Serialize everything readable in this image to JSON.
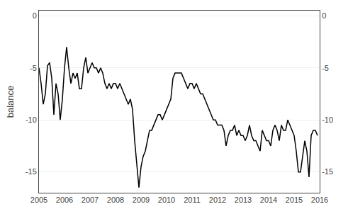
{
  "chart_data": {
    "type": "line",
    "ylabel": "balance",
    "color": "#000000",
    "grid": "y",
    "xlim": [
      2005.0,
      2016.0
    ],
    "ylim": [
      -17.0,
      0.5
    ],
    "xticks": [
      2005,
      2006,
      2007,
      2008,
      2009,
      2010,
      2011,
      2012,
      2013,
      2014,
      2015,
      2016
    ],
    "yticks": [
      0,
      -5,
      -10,
      -15
    ],
    "y2lim": [
      -17.0,
      0.5
    ],
    "y2ticks": [
      0,
      -5,
      -10,
      -15
    ],
    "x": [
      2005.0,
      2005.083,
      2005.167,
      2005.25,
      2005.333,
      2005.417,
      2005.5,
      2005.583,
      2005.667,
      2005.75,
      2005.833,
      2005.917,
      2006.0,
      2006.083,
      2006.167,
      2006.25,
      2006.333,
      2006.417,
      2006.5,
      2006.583,
      2006.667,
      2006.75,
      2006.833,
      2006.917,
      2007.0,
      2007.083,
      2007.167,
      2007.25,
      2007.333,
      2007.417,
      2007.5,
      2007.583,
      2007.667,
      2007.75,
      2007.833,
      2007.917,
      2008.0,
      2008.083,
      2008.167,
      2008.25,
      2008.333,
      2008.417,
      2008.5,
      2008.583,
      2008.667,
      2008.75,
      2008.833,
      2008.917,
      2009.0,
      2009.083,
      2009.167,
      2009.25,
      2009.333,
      2009.417,
      2009.5,
      2009.583,
      2009.667,
      2009.75,
      2009.833,
      2009.917,
      2010.0,
      2010.083,
      2010.167,
      2010.25,
      2010.333,
      2010.417,
      2010.5,
      2010.583,
      2010.667,
      2010.75,
      2010.833,
      2010.917,
      2011.0,
      2011.083,
      2011.167,
      2011.25,
      2011.333,
      2011.417,
      2011.5,
      2011.583,
      2011.667,
      2011.75,
      2011.833,
      2011.917,
      2012.0,
      2012.083,
      2012.167,
      2012.25,
      2012.333,
      2012.417,
      2012.5,
      2012.583,
      2012.667,
      2012.75,
      2012.833,
      2012.917,
      2013.0,
      2013.083,
      2013.167,
      2013.25,
      2013.333,
      2013.417,
      2013.5,
      2013.583,
      2013.667,
      2013.75,
      2013.833,
      2013.917,
      2014.0,
      2014.083,
      2014.167,
      2014.25,
      2014.333,
      2014.417,
      2014.5,
      2014.583,
      2014.667,
      2014.75,
      2014.833,
      2014.917,
      2015.0,
      2015.083,
      2015.167,
      2015.25,
      2015.333,
      2015.417,
      2015.5,
      2015.583,
      2015.667,
      2015.75,
      2015.833,
      2015.917
    ],
    "values": [
      -5.0,
      -6.5,
      -8.5,
      -7.5,
      -4.8,
      -4.5,
      -6.0,
      -9.5,
      -6.5,
      -7.5,
      -10.0,
      -8.0,
      -5.0,
      -3.0,
      -5.0,
      -6.5,
      -5.5,
      -6.0,
      -5.5,
      -7.0,
      -7.0,
      -5.0,
      -4.0,
      -5.5,
      -5.0,
      -4.5,
      -5.0,
      -5.0,
      -5.5,
      -5.0,
      -5.5,
      -6.5,
      -7.0,
      -6.5,
      -7.0,
      -6.5,
      -6.5,
      -7.0,
      -6.5,
      -7.0,
      -7.5,
      -8.0,
      -8.5,
      -8.0,
      -9.0,
      -12.0,
      -14.5,
      -16.5,
      -14.5,
      -13.5,
      -13.0,
      -12.0,
      -11.0,
      -11.0,
      -10.5,
      -10.0,
      -9.5,
      -9.5,
      -10.0,
      -9.5,
      -9.0,
      -8.5,
      -8.0,
      -6.0,
      -5.5,
      -5.5,
      -5.5,
      -5.5,
      -6.0,
      -6.5,
      -7.0,
      -6.5,
      -6.5,
      -7.0,
      -6.5,
      -7.0,
      -7.5,
      -7.5,
      -8.0,
      -8.5,
      -9.0,
      -9.5,
      -10.0,
      -10.0,
      -10.5,
      -10.5,
      -10.5,
      -11.0,
      -12.5,
      -11.5,
      -11.0,
      -11.0,
      -10.5,
      -11.5,
      -11.0,
      -11.5,
      -11.5,
      -12.0,
      -11.5,
      -10.5,
      -11.5,
      -12.0,
      -12.0,
      -12.5,
      -13.0,
      -11.0,
      -11.5,
      -12.0,
      -12.0,
      -12.5,
      -11.0,
      -10.5,
      -11.0,
      -12.0,
      -10.5,
      -11.0,
      -11.0,
      -10.0,
      -10.5,
      -11.0,
      -11.5,
      -13.0,
      -15.0,
      -15.0,
      -13.5,
      -12.0,
      -13.0,
      -15.5,
      -11.5,
      -11.0,
      -11.0,
      -11.5
    ]
  }
}
